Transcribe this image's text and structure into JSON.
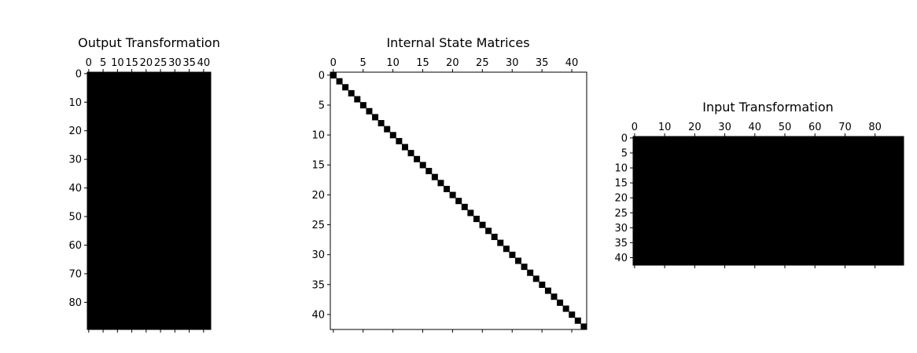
{
  "chart_data": [
    {
      "type": "heatmap",
      "title": "Output Transformation",
      "rows": 90,
      "cols": 43,
      "pattern": "full",
      "colors": {
        "nonzero": "#000000",
        "zero": "#ffffff"
      },
      "x_ticks": [
        0,
        5,
        10,
        15,
        20,
        25,
        30,
        35,
        40
      ],
      "y_ticks": [
        0,
        10,
        20,
        30,
        40,
        50,
        60,
        70,
        80
      ],
      "x_tick_labels": [
        "0",
        "5",
        "10",
        "15",
        "20",
        "25",
        "30",
        "35",
        "40"
      ],
      "y_tick_labels": [
        "0",
        "10",
        "20",
        "30",
        "40",
        "50",
        "60",
        "70",
        "80"
      ]
    },
    {
      "type": "heatmap",
      "title": "Internal State Matrices",
      "rows": 43,
      "cols": 43,
      "pattern": "diagonal",
      "colors": {
        "nonzero": "#000000",
        "zero": "#ffffff"
      },
      "x_ticks": [
        0,
        5,
        10,
        15,
        20,
        25,
        30,
        35,
        40
      ],
      "y_ticks": [
        0,
        5,
        10,
        15,
        20,
        25,
        30,
        35,
        40
      ],
      "x_tick_labels": [
        "0",
        "5",
        "10",
        "15",
        "20",
        "25",
        "30",
        "35",
        "40"
      ],
      "y_tick_labels": [
        "0",
        "5",
        "10",
        "15",
        "20",
        "25",
        "30",
        "35",
        "40"
      ]
    },
    {
      "type": "heatmap",
      "title": "Input Transformation",
      "rows": 43,
      "cols": 90,
      "pattern": "full",
      "colors": {
        "nonzero": "#000000",
        "zero": "#ffffff"
      },
      "x_ticks": [
        0,
        10,
        20,
        30,
        40,
        50,
        60,
        70,
        80
      ],
      "y_ticks": [
        0,
        5,
        10,
        15,
        20,
        25,
        30,
        35,
        40
      ],
      "x_tick_labels": [
        "0",
        "10",
        "20",
        "30",
        "40",
        "50",
        "60",
        "70",
        "80"
      ],
      "y_tick_labels": [
        "0",
        "5",
        "10",
        "15",
        "20",
        "25",
        "30",
        "35",
        "40"
      ]
    }
  ]
}
